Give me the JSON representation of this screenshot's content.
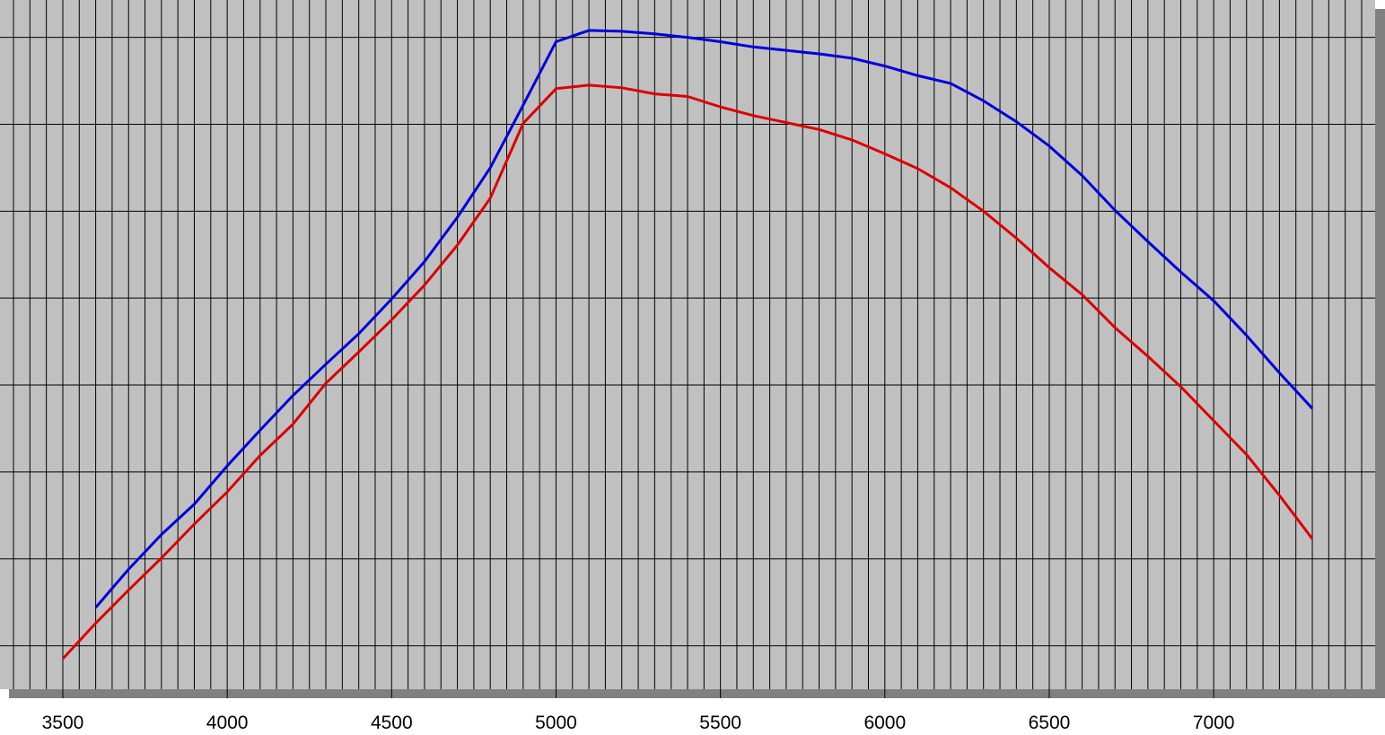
{
  "chart_data": {
    "type": "line",
    "x": [
      3500,
      3600,
      3700,
      3800,
      3900,
      4000,
      4100,
      4200,
      4300,
      4400,
      4500,
      4600,
      4700,
      4800,
      4900,
      5000,
      5100,
      5200,
      5300,
      5400,
      5500,
      5600,
      5700,
      5800,
      5900,
      6000,
      6100,
      6200,
      6300,
      6400,
      6500,
      6600,
      6700,
      6800,
      6900,
      7000,
      7100,
      7200,
      7300
    ],
    "series": [
      {
        "color": "#0000dd",
        "values": [
          null,
          0.44,
          0.88,
          1.28,
          1.63,
          2.07,
          2.48,
          2.88,
          3.24,
          3.59,
          3.99,
          4.42,
          4.93,
          5.5,
          6.22,
          6.95,
          7.08,
          7.07,
          7.04,
          7.0,
          6.95,
          6.89,
          6.85,
          6.81,
          6.76,
          6.67,
          6.56,
          6.47,
          6.27,
          6.03,
          5.75,
          5.41,
          5.01,
          4.65,
          4.3,
          3.97,
          3.57,
          3.14,
          2.73
        ]
      },
      {
        "color": "#dd0000",
        "values": [
          -0.15,
          0.26,
          0.64,
          1.01,
          1.4,
          1.77,
          2.19,
          2.55,
          3.02,
          3.38,
          3.75,
          4.15,
          4.61,
          5.15,
          6.01,
          6.41,
          6.45,
          6.42,
          6.35,
          6.32,
          6.2,
          6.1,
          6.02,
          5.94,
          5.82,
          5.66,
          5.49,
          5.27,
          5.0,
          4.69,
          4.35,
          4.04,
          3.66,
          3.33,
          2.98,
          2.59,
          2.2,
          1.73,
          1.23
        ]
      }
    ],
    "xlim": [
      3309,
      7491
    ],
    "xticks": [
      3500,
      4000,
      4500,
      5000,
      5500,
      6000,
      6500,
      7000
    ],
    "xgrid_step": 50,
    "ylim": [
      -0.5,
      7.43
    ],
    "ygrid": [
      0,
      1,
      2,
      3,
      4,
      5,
      6,
      7
    ],
    "background": "#c0c0c0"
  }
}
